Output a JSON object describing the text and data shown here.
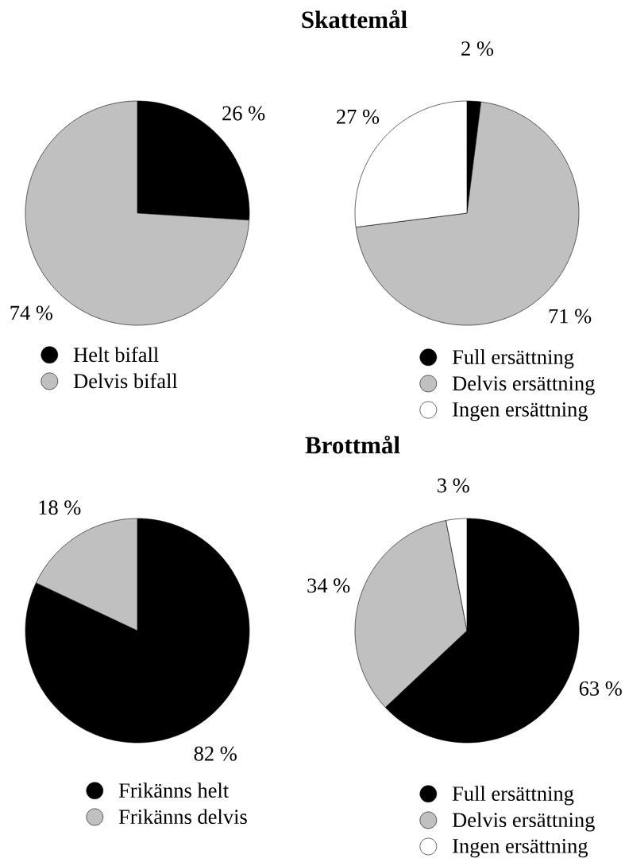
{
  "chart_data": [
    {
      "type": "pie",
      "categories": [
        "Helt bifall",
        "Delvis bifall"
      ],
      "values": [
        26,
        74
      ],
      "colors": [
        "#000000",
        "#c0c0c0"
      ],
      "value_labels": [
        "26 %",
        "74 %"
      ],
      "legend": "bottom"
    },
    {
      "type": "pie",
      "title": "Skattemål",
      "categories": [
        "Full ersättning",
        "Delvis ersättning",
        "Ingen ersättning"
      ],
      "values": [
        2,
        71,
        27
      ],
      "colors": [
        "#000000",
        "#c0c0c0",
        "#ffffff"
      ],
      "value_labels": [
        "2 %",
        "71 %",
        "27 %"
      ],
      "legend": "bottom"
    },
    {
      "type": "pie",
      "categories": [
        "Frikänns helt",
        "Frikänns delvis"
      ],
      "values": [
        82,
        18
      ],
      "colors": [
        "#000000",
        "#c0c0c0"
      ],
      "value_labels": [
        "82 %",
        "18 %"
      ],
      "legend": "bottom"
    },
    {
      "type": "pie",
      "title": "Brottmål",
      "categories": [
        "Full ersättning",
        "Delvis ersättning",
        "Ingen ersättning"
      ],
      "values": [
        63,
        34,
        3
      ],
      "colors": [
        "#000000",
        "#c0c0c0",
        "#ffffff"
      ],
      "value_labels": [
        "63 %",
        "34 %",
        "3 %"
      ],
      "legend": "bottom"
    }
  ]
}
